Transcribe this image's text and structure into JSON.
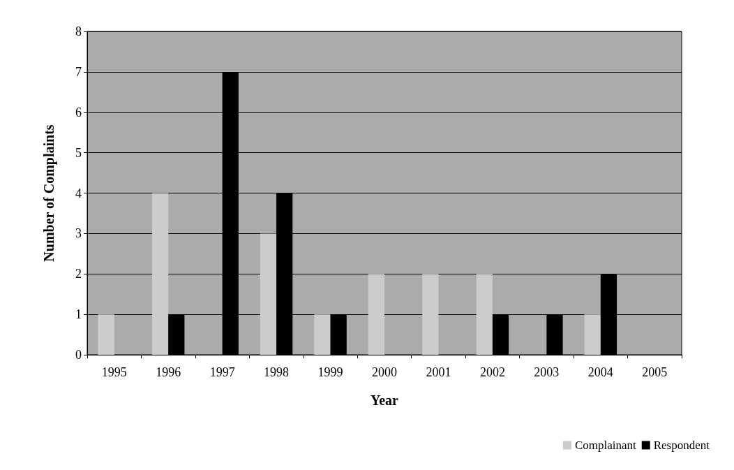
{
  "chart_data": {
    "type": "bar",
    "xlabel": "Year",
    "ylabel": "Number of Complaints",
    "categories": [
      "1995",
      "1996",
      "1997",
      "1998",
      "1999",
      "2000",
      "2001",
      "2002",
      "2003",
      "2004",
      "2005"
    ],
    "series": [
      {
        "name": "Complainant",
        "color": "#cccccc",
        "values": [
          1,
          4,
          0,
          3,
          1,
          2,
          2,
          2,
          0,
          1,
          0
        ]
      },
      {
        "name": "Respondent",
        "color": "#000000",
        "values": [
          0,
          1,
          7,
          4,
          1,
          0,
          0,
          1,
          1,
          2,
          0
        ]
      }
    ],
    "ylim": [
      0,
      8
    ],
    "yticks": [
      0,
      1,
      2,
      3,
      4,
      5,
      6,
      7,
      8
    ],
    "grid": "y",
    "legend": "bottom right"
  }
}
